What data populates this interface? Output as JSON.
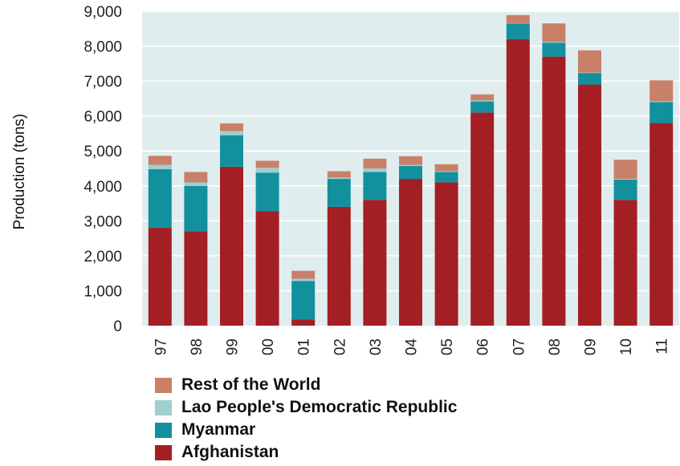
{
  "chart_data": {
    "type": "bar",
    "stacked": true,
    "title": "",
    "xlabel": "",
    "ylabel": "Production (tons)",
    "ylim": [
      0,
      9000
    ],
    "yticks": [
      0,
      1000,
      2000,
      3000,
      4000,
      5000,
      6000,
      7000,
      8000,
      9000
    ],
    "ytick_labels": [
      "0",
      "1,000",
      "2,000",
      "3,000",
      "4,000",
      "5,000",
      "6,000",
      "7,000",
      "8,000",
      "9,000"
    ],
    "grid": "horizontal",
    "legend_position": "bottom",
    "categories": [
      "97",
      "98",
      "99",
      "00",
      "01",
      "02",
      "03",
      "04",
      "05",
      "06",
      "07",
      "08",
      "09",
      "10",
      "11"
    ],
    "series": [
      {
        "name": "Afghanistan",
        "color": "#a31f24",
        "values": [
          2800,
          2700,
          4550,
          3280,
          180,
          3400,
          3600,
          4200,
          4100,
          6100,
          8200,
          7700,
          6900,
          3600,
          5800
        ]
      },
      {
        "name": "Myanmar",
        "color": "#13909d",
        "values": [
          1680,
          1300,
          900,
          1100,
          1100,
          800,
          800,
          370,
          300,
          320,
          450,
          400,
          330,
          580,
          600
        ]
      },
      {
        "name": "Lao People's Democratic Republic",
        "color": "#9fcfcf",
        "values": [
          120,
          100,
          120,
          140,
          60,
          40,
          100,
          30,
          20,
          30,
          10,
          20,
          10,
          20,
          20
        ]
      },
      {
        "name": "Rest of the World",
        "color": "#c98068",
        "values": [
          260,
          300,
          220,
          200,
          230,
          180,
          280,
          250,
          200,
          170,
          230,
          530,
          640,
          550,
          600
        ]
      }
    ],
    "plot_background": "#e0edee",
    "grid_color": "#ffffff"
  }
}
